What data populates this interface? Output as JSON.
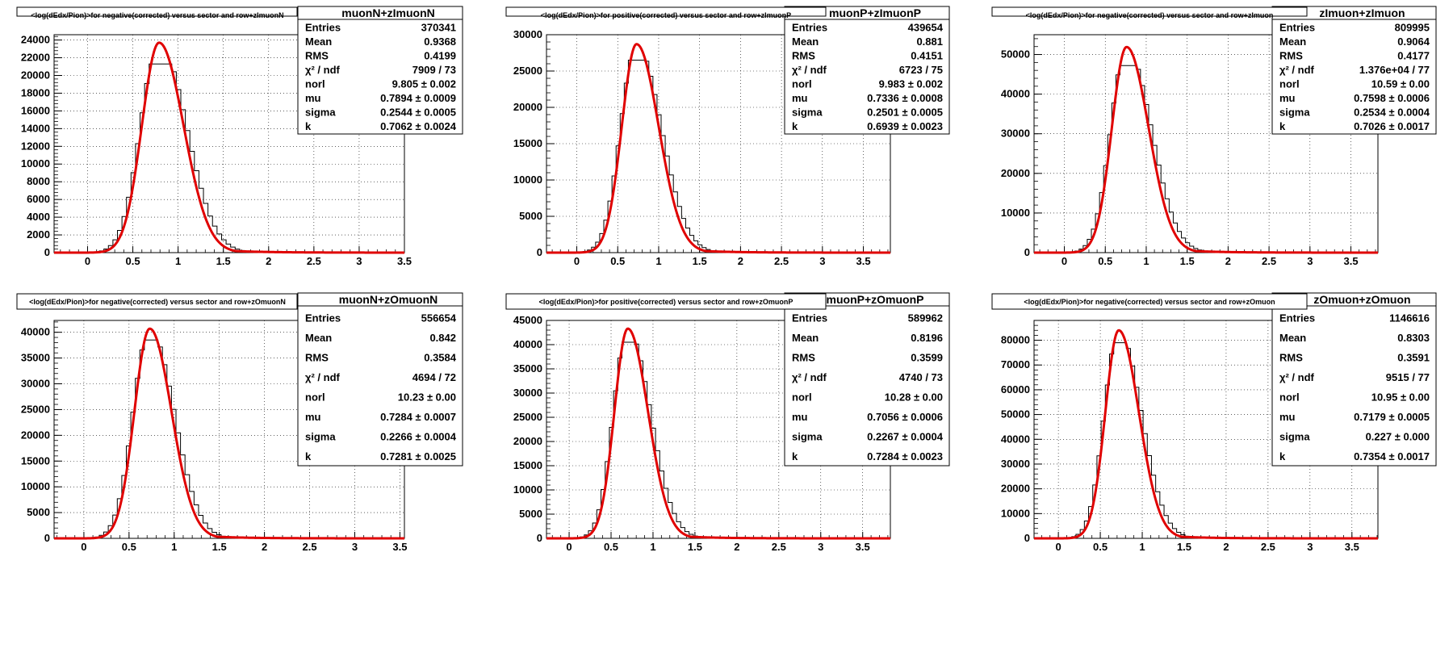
{
  "chart_data": [
    {
      "type": "line",
      "title": "<log(dEdx/Pion)>for negative(corrected) versus sector and row+zImuonN",
      "stats_name": "muonN+zImuonN",
      "stats": [
        {
          "label": "Entries",
          "value": "370341"
        },
        {
          "label": "Mean",
          "value": "0.9368"
        },
        {
          "label": "RMS",
          "value": "0.4199"
        },
        {
          "label": "χ² / ndf",
          "value": "7909 / 73"
        },
        {
          "label": "norl",
          "value": "9.805 ± 0.002"
        },
        {
          "label": "mu",
          "value": "0.7894 ± 0.0009"
        },
        {
          "label": "sigma",
          "value": "0.2544 ± 0.0005"
        },
        {
          "label": "k",
          "value": "0.7062 ± 0.0024"
        }
      ],
      "xlim": [
        -0.37,
        3.5
      ],
      "ylim": [
        0,
        24600
      ],
      "x_ticks": [
        "0",
        "0.5",
        "1",
        "1.5",
        "2",
        "2.5",
        "3",
        "3.5"
      ],
      "y_ticks": [
        "0",
        "2000",
        "4000",
        "6000",
        "8000",
        "10000",
        "12000",
        "14000",
        "16000",
        "18000",
        "20000",
        "22000",
        "24000"
      ],
      "fit": {
        "peak": 23700,
        "mu": 0.79,
        "sigma_left": 0.19,
        "sigma_right": 0.27,
        "tail": 0.42
      },
      "hist_peak": 21300,
      "color": "#e00000"
    },
    {
      "type": "line",
      "title": "<log(dEdx/Pion)>for positive(corrected) versus sector and row+zImuonP",
      "stats_name": "muonP+zImuonP",
      "stats": [
        {
          "label": "Entries",
          "value": "439654"
        },
        {
          "label": "Mean",
          "value": "0.881"
        },
        {
          "label": "RMS",
          "value": "0.4151"
        },
        {
          "label": "χ² / ndf",
          "value": "6723 / 75"
        },
        {
          "label": "norl",
          "value": "9.983 ± 0.002"
        },
        {
          "label": "mu",
          "value": "0.7336 ± 0.0008"
        },
        {
          "label": "sigma",
          "value": "0.2501 ± 0.0005"
        },
        {
          "label": "k",
          "value": "0.6939 ± 0.0023"
        }
      ],
      "xlim": [
        -0.37,
        3.83
      ],
      "ylim": [
        0,
        30000
      ],
      "x_ticks": [
        "0",
        "0.5",
        "1",
        "1.5",
        "2",
        "2.5",
        "3",
        "3.5"
      ],
      "y_ticks": [
        "0",
        "5000",
        "10000",
        "15000",
        "20000",
        "25000",
        "30000"
      ],
      "fit": {
        "peak": 28700,
        "mu": 0.73,
        "sigma_left": 0.18,
        "sigma_right": 0.27,
        "tail": 0.42
      },
      "hist_peak": 26500,
      "color": "#e00000"
    },
    {
      "type": "line",
      "title": "<log(dEdx/Pion)>for negative(corrected) versus sector and row+zImuon",
      "stats_name": "zImuon+zImuon",
      "stats": [
        {
          "label": "Entries",
          "value": "809995"
        },
        {
          "label": "Mean",
          "value": "0.9064"
        },
        {
          "label": "RMS",
          "value": "0.4177"
        },
        {
          "label": "χ² / ndf",
          "value": "1.376e+04 / 77"
        },
        {
          "label": "norl",
          "value": "10.59 ± 0.00"
        },
        {
          "label": "mu",
          "value": "0.7598 ± 0.0006"
        },
        {
          "label": "sigma",
          "value": "0.2534 ± 0.0004"
        },
        {
          "label": "k",
          "value": "0.7026 ± 0.0017"
        }
      ],
      "xlim": [
        -0.37,
        3.83
      ],
      "ylim": [
        0,
        55000
      ],
      "x_ticks": [
        "0",
        "0.5",
        "1",
        "1.5",
        "2",
        "2.5",
        "3",
        "3.5"
      ],
      "y_ticks": [
        "0",
        "10000",
        "20000",
        "30000",
        "40000",
        "50000"
      ],
      "fit": {
        "peak": 51900,
        "mu": 0.76,
        "sigma_left": 0.18,
        "sigma_right": 0.27,
        "tail": 0.42
      },
      "hist_peak": 47200,
      "color": "#e00000"
    },
    {
      "type": "line",
      "title": "<log(dEdx/Pion)>for negative(corrected) versus sector and row+zOmuonN",
      "stats_name": "muonN+zOmuonN",
      "stats": [
        {
          "label": "Entries",
          "value": "556654"
        },
        {
          "label": "Mean",
          "value": "0.842"
        },
        {
          "label": "RMS",
          "value": "0.3584"
        },
        {
          "label": "χ² / ndf",
          "value": "4694 / 72"
        },
        {
          "label": "norl",
          "value": "10.23 ± 0.00"
        },
        {
          "label": "mu",
          "value": "0.7284 ± 0.0007"
        },
        {
          "label": "sigma",
          "value": "0.2266 ± 0.0004"
        },
        {
          "label": "k",
          "value": "0.7281 ± 0.0025"
        }
      ],
      "xlim": [
        -0.33,
        3.55
      ],
      "ylim": [
        0,
        42300
      ],
      "x_ticks": [
        "0",
        "0.5",
        "1",
        "1.5",
        "2",
        "2.5",
        "3",
        "3.5"
      ],
      "y_ticks": [
        "0",
        "5000",
        "10000",
        "15000",
        "20000",
        "25000",
        "30000",
        "35000",
        "40000"
      ],
      "fit": {
        "peak": 40700,
        "mu": 0.73,
        "sigma_left": 0.17,
        "sigma_right": 0.24,
        "tail": 0.38
      },
      "hist_peak": 38500,
      "color": "#e00000"
    },
    {
      "type": "line",
      "title": "<log(dEdx/Pion)>for positive(corrected) versus sector and row+zOmuonP",
      "stats_name": "muonP+zOmuonP",
      "stats": [
        {
          "label": "Entries",
          "value": "589962"
        },
        {
          "label": "Mean",
          "value": "0.8196"
        },
        {
          "label": "RMS",
          "value": "0.3599"
        },
        {
          "label": "χ² / ndf",
          "value": "4740 / 73"
        },
        {
          "label": "norl",
          "value": "10.28 ± 0.00"
        },
        {
          "label": "mu",
          "value": "0.7056 ± 0.0006"
        },
        {
          "label": "sigma",
          "value": "0.2267 ± 0.0004"
        },
        {
          "label": "k",
          "value": "0.7284 ± 0.0023"
        }
      ],
      "xlim": [
        -0.27,
        3.83
      ],
      "ylim": [
        0,
        45000
      ],
      "x_ticks": [
        "0",
        "0.5",
        "1",
        "1.5",
        "2",
        "2.5",
        "3",
        "3.5"
      ],
      "y_ticks": [
        "0",
        "5000",
        "10000",
        "15000",
        "20000",
        "25000",
        "30000",
        "35000",
        "40000",
        "45000"
      ],
      "fit": {
        "peak": 43300,
        "mu": 0.7,
        "sigma_left": 0.16,
        "sigma_right": 0.24,
        "tail": 0.38
      },
      "hist_peak": 40500,
      "color": "#e00000"
    },
    {
      "type": "line",
      "title": "<log(dEdx/Pion)>for negative(corrected) versus sector and row+zOmuon",
      "stats_name": "zOmuon+zOmuon",
      "stats": [
        {
          "label": "Entries",
          "value": "1146616"
        },
        {
          "label": "Mean",
          "value": "0.8303"
        },
        {
          "label": "RMS",
          "value": "0.3591"
        },
        {
          "label": "χ² / ndf",
          "value": "9515 / 77"
        },
        {
          "label": "norl",
          "value": "10.95 ± 0.00"
        },
        {
          "label": "mu",
          "value": "0.7179 ± 0.0005"
        },
        {
          "label": "sigma",
          "value": "0.227 ± 0.000"
        },
        {
          "label": "k",
          "value": "0.7354 ± 0.0017"
        }
      ],
      "xlim": [
        -0.29,
        3.81
      ],
      "ylim": [
        0,
        88000
      ],
      "x_ticks": [
        "0",
        "0.5",
        "1",
        "1.5",
        "2",
        "2.5",
        "3",
        "3.5"
      ],
      "y_ticks": [
        "0",
        "10000",
        "20000",
        "30000",
        "40000",
        "50000",
        "60000",
        "70000",
        "80000"
      ],
      "fit": {
        "peak": 84000,
        "mu": 0.72,
        "sigma_left": 0.16,
        "sigma_right": 0.24,
        "tail": 0.38
      },
      "hist_peak": 79000,
      "color": "#e00000"
    }
  ]
}
